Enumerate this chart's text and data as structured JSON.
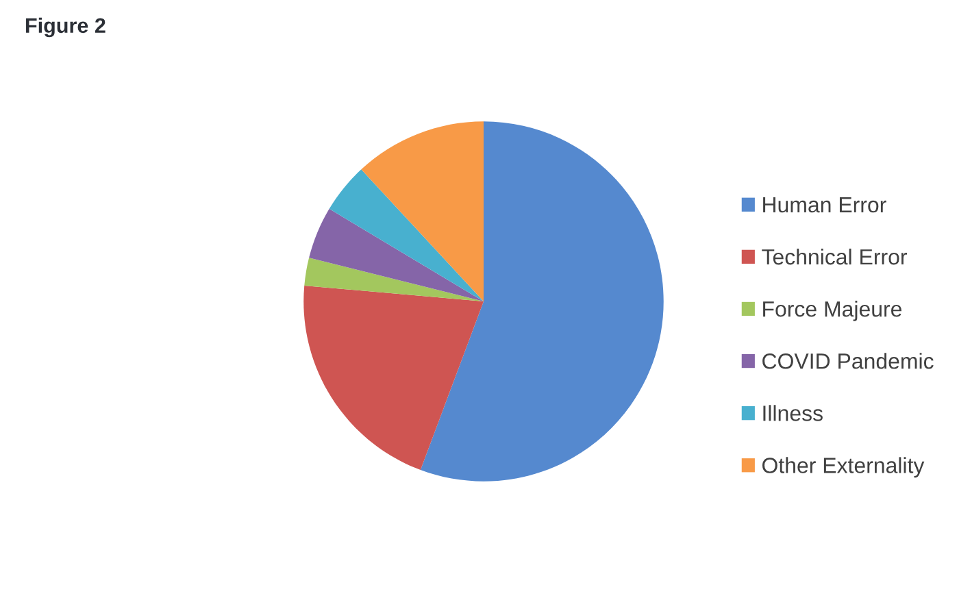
{
  "chart_data": {
    "type": "pie",
    "title": "Figure 2",
    "categories": [
      "Human Error",
      "Technical Error",
      "Force Majeure",
      "COVID Pandemic",
      "Illness",
      "Other Externality"
    ],
    "values": [
      55.7,
      20.7,
      2.5,
      4.7,
      4.5,
      11.9
    ],
    "colors": [
      "#5589cf",
      "#cf5552",
      "#a3c75e",
      "#8565a8",
      "#48b0cf",
      "#f89a47"
    ],
    "legend": "right"
  }
}
